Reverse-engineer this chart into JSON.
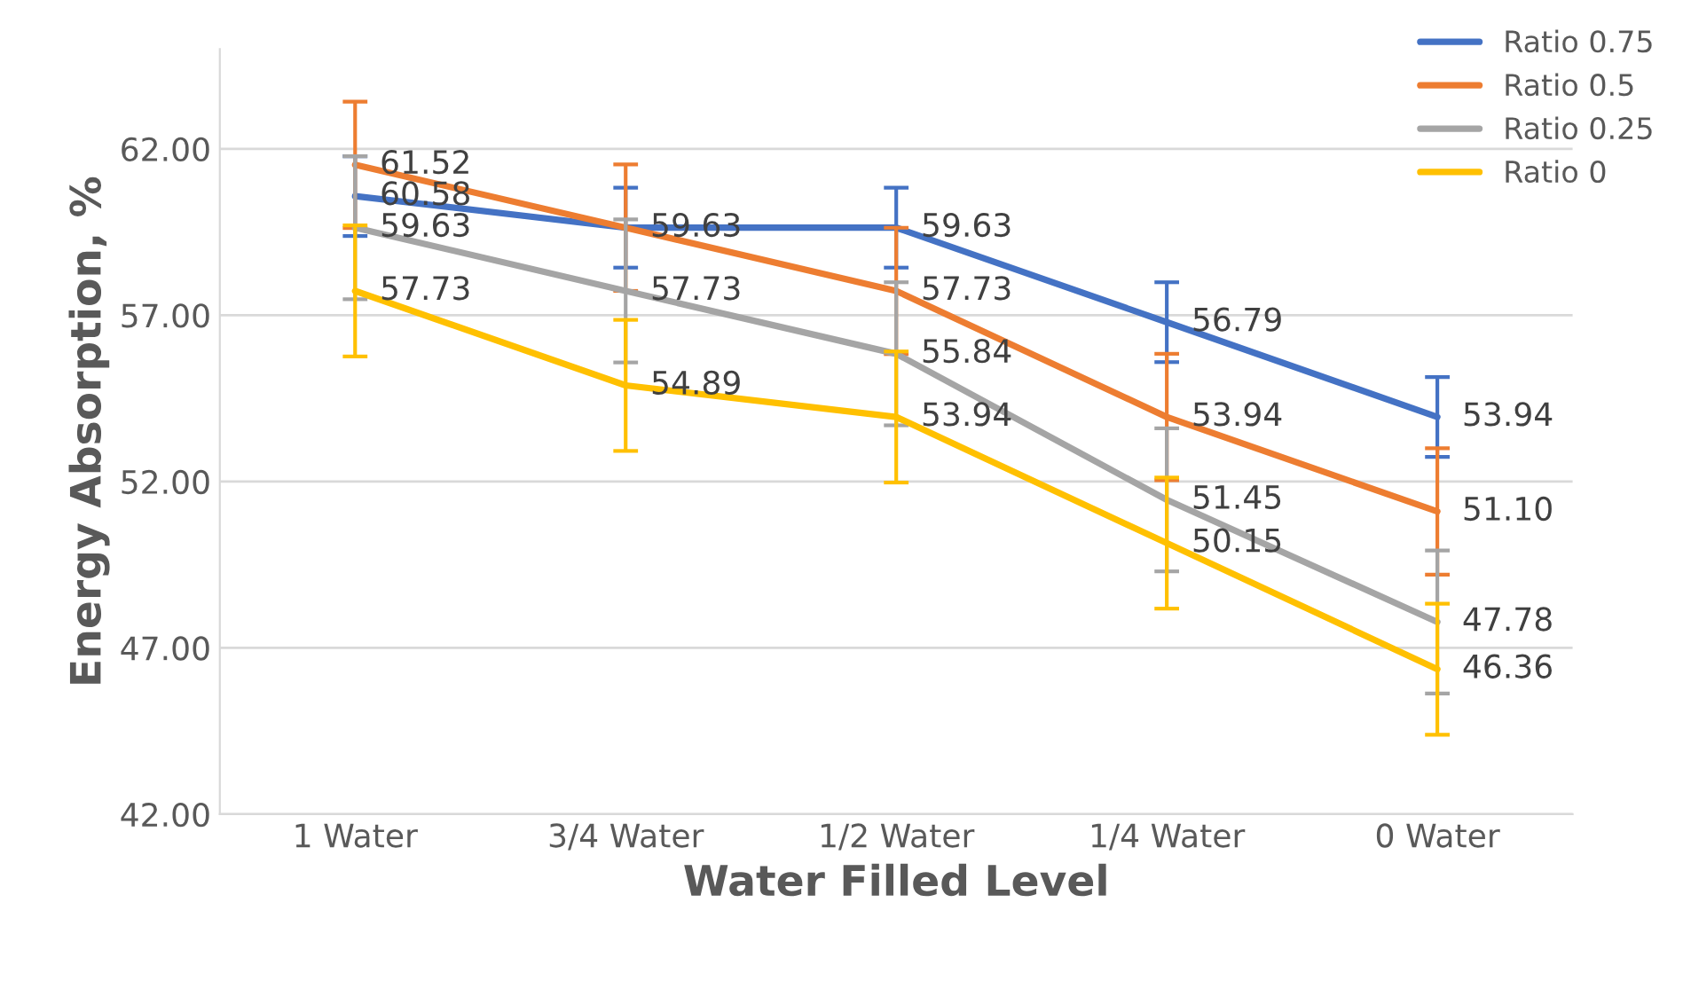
{
  "chart_data": {
    "type": "line",
    "xlabel": "Water Filled Level",
    "ylabel": "Energy Absorption, %",
    "categories": [
      "1 Water",
      "3/4 Water",
      "1/2 Water",
      "1/4 Water",
      "0 Water"
    ],
    "series": [
      {
        "name": "Ratio 0.75",
        "color": "#4472c4",
        "values": [
          60.58,
          59.63,
          59.63,
          56.79,
          53.94
        ],
        "errors": [
          1.2,
          1.2,
          1.2,
          1.2,
          1.2
        ],
        "value_labels": [
          "60.58",
          null,
          "59.63",
          "56.79",
          "53.94"
        ]
      },
      {
        "name": "Ratio 0.5",
        "color": "#ed7d31",
        "values": [
          61.52,
          59.63,
          57.73,
          53.94,
          51.1
        ],
        "errors": [
          1.9,
          1.9,
          1.9,
          1.9,
          1.9
        ],
        "value_labels": [
          "61.52",
          "59.63",
          "57.73",
          "53.94",
          "51.10"
        ]
      },
      {
        "name": "Ratio 0.25",
        "color": "#a5a5a5",
        "values": [
          59.63,
          57.73,
          55.84,
          51.45,
          47.78
        ],
        "errors": [
          2.15,
          2.15,
          2.15,
          2.15,
          2.15
        ],
        "value_labels": [
          "59.63",
          "57.73",
          "55.84",
          "51.45",
          "47.78"
        ]
      },
      {
        "name": "Ratio 0",
        "color": "#ffc000",
        "values": [
          57.73,
          54.89,
          53.94,
          50.15,
          46.36
        ],
        "errors": [
          1.97,
          1.97,
          1.97,
          1.97,
          1.97
        ],
        "value_labels": [
          "57.73",
          "54.89",
          "53.94",
          "50.15",
          "46.36"
        ]
      }
    ],
    "ylim": [
      42,
      65
    ],
    "yticks": [
      {
        "value": 42,
        "label": "42.00"
      },
      {
        "value": 47,
        "label": "47.00"
      },
      {
        "value": 52,
        "label": "52.00"
      },
      {
        "value": 57,
        "label": "57.00"
      },
      {
        "value": 62,
        "label": "62.00"
      }
    ],
    "grid": "y",
    "legend": "top right",
    "marker": "none",
    "line_style": "solid"
  }
}
